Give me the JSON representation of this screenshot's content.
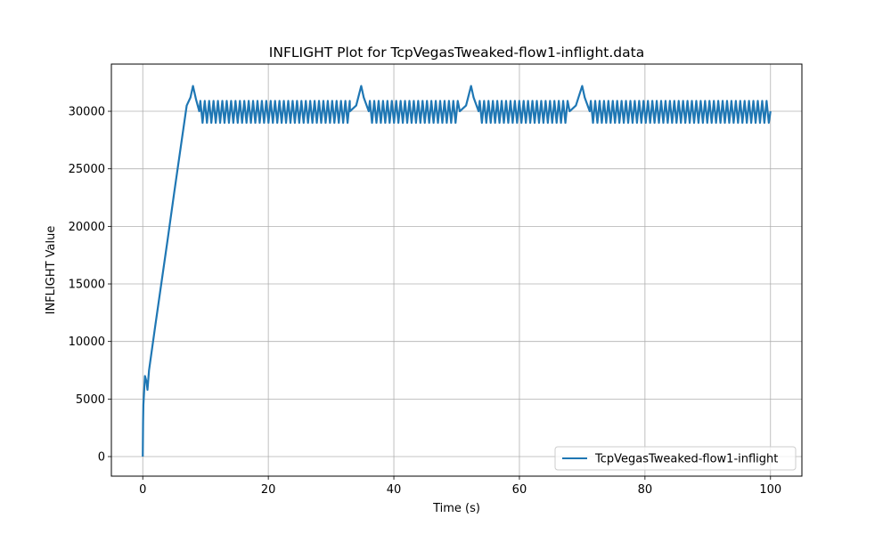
{
  "chart_data": {
    "type": "line",
    "title": "INFLIGHT Plot for TcpVegasTweaked-flow1-inflight.data",
    "xlabel": "Time (s)",
    "ylabel": "INFLIGHT Value",
    "xlim": [
      -5,
      105
    ],
    "ylim": [
      -1700,
      34100
    ],
    "x_ticks": [
      0,
      20,
      40,
      60,
      80,
      100
    ],
    "x_tick_labels": [
      "0",
      "20",
      "40",
      "60",
      "80",
      "100"
    ],
    "y_ticks": [
      0,
      5000,
      10000,
      15000,
      20000,
      25000,
      30000
    ],
    "y_tick_labels": [
      "0",
      "5000",
      "10000",
      "15000",
      "20000",
      "25000",
      "30000"
    ],
    "grid": true,
    "legend_position": "lower right",
    "series": [
      {
        "name": "TcpVegasTweaked-flow1-inflight",
        "color": "#1f77b4",
        "oscillation": {
          "min": 29000,
          "max": 30900,
          "period_s": 0.7
        },
        "x": [
          0,
          0.05,
          0.1,
          0.2,
          0.35,
          0.6,
          0.75,
          1.0,
          2.0,
          3.0,
          4.0,
          5.0,
          6.0,
          7.0,
          7.6,
          8.0,
          8.5,
          9.0,
          33.0,
          34.0,
          34.8,
          35.2,
          36.0,
          50.5,
          51.5,
          52.3,
          52.7,
          53.5,
          68.0,
          69.0,
          70.0,
          70.4,
          71.2,
          100.0
        ],
        "y": [
          0,
          3000,
          4500,
          5500,
          7000,
          6500,
          5800,
          7500,
          11400,
          15200,
          19000,
          22900,
          26700,
          30500,
          31200,
          32200,
          31000,
          30000,
          30000,
          30500,
          32200,
          31200,
          30000,
          30000,
          30500,
          32200,
          31200,
          30000,
          30000,
          30500,
          32200,
          31200,
          30000,
          30000
        ]
      }
    ]
  }
}
